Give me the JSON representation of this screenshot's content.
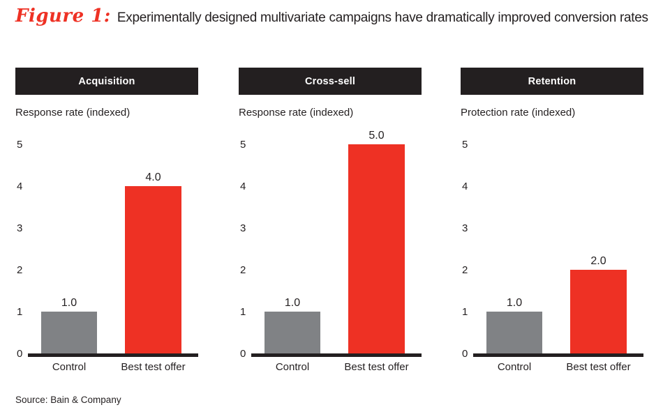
{
  "title": {
    "figure_label": "Figure 1:",
    "text": "Experimentally designed multivariate campaigns have dramatically improved conversion rates"
  },
  "source": "Source: Bain & Company",
  "colors": {
    "accent_red": "#EE3124",
    "bar_gray": "#808285",
    "panel_black": "#231F20",
    "text_dark": "#231F20"
  },
  "chart_data": [
    {
      "type": "bar",
      "panel_title": "Acquisition",
      "ylabel": "Response rate (indexed)",
      "categories": [
        "Control",
        "Best test offer"
      ],
      "values": [
        1.0,
        4.0
      ],
      "value_labels": [
        "1.0",
        "4.0"
      ],
      "bar_colors": [
        "bar_gray",
        "accent_red"
      ],
      "ylim": [
        0,
        5
      ],
      "ytick_labels": [
        "0",
        "1",
        "2",
        "3",
        "4",
        "5"
      ],
      "grid": false,
      "legend": "none"
    },
    {
      "type": "bar",
      "panel_title": "Cross-sell",
      "ylabel": "Response rate (indexed)",
      "categories": [
        "Control",
        "Best test offer"
      ],
      "values": [
        1.0,
        5.0
      ],
      "value_labels": [
        "1.0",
        "5.0"
      ],
      "bar_colors": [
        "bar_gray",
        "accent_red"
      ],
      "ylim": [
        0,
        5
      ],
      "ytick_labels": [
        "0",
        "1",
        "2",
        "3",
        "4",
        "5"
      ],
      "grid": false,
      "legend": "none"
    },
    {
      "type": "bar",
      "panel_title": "Retention",
      "ylabel": "Protection rate (indexed)",
      "categories": [
        "Control",
        "Best test offer"
      ],
      "values": [
        1.0,
        2.0
      ],
      "value_labels": [
        "1.0",
        "2.0"
      ],
      "bar_colors": [
        "bar_gray",
        "accent_red"
      ],
      "ylim": [
        0,
        5
      ],
      "ytick_labels": [
        "0",
        "1",
        "2",
        "3",
        "4",
        "5"
      ],
      "grid": false,
      "legend": "none"
    }
  ]
}
